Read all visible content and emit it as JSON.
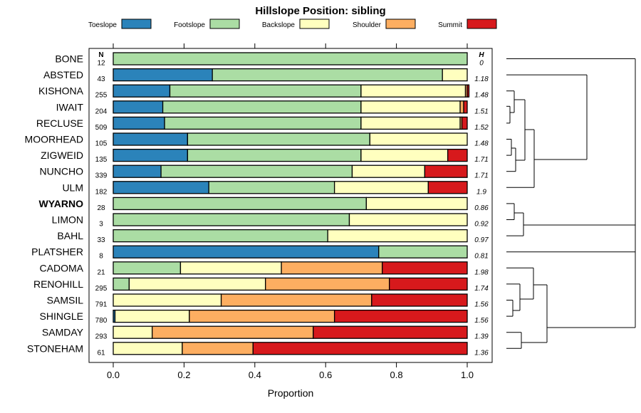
{
  "chart_data": {
    "type": "stacked-bar-horizontal",
    "title": "Hillslope Position: sibling",
    "xlabel": "Proportion",
    "ylabel": "",
    "xlim": [
      0,
      1
    ],
    "xticks": [
      "0.0",
      "0.2",
      "0.4",
      "0.6",
      "0.8",
      "1.0"
    ],
    "n_header": "N",
    "h_header": "H",
    "legend": [
      {
        "name": "Toeslope",
        "color": "#2b83ba"
      },
      {
        "name": "Footslope",
        "color": "#abdda4"
      },
      {
        "name": "Backslope",
        "color": "#ffffbf"
      },
      {
        "name": "Shoulder",
        "color": "#fdae61"
      },
      {
        "name": "Summit",
        "color": "#d7191c"
      }
    ],
    "rows": [
      {
        "name": "BONE",
        "n": "12",
        "h": "0",
        "bold": false,
        "values": [
          0,
          1.0,
          0,
          0,
          0
        ]
      },
      {
        "name": "ABSTED",
        "n": "43",
        "h": "1.18",
        "bold": false,
        "values": [
          0.28,
          0.65,
          0.07,
          0,
          0
        ]
      },
      {
        "name": "KISHONA",
        "n": "255",
        "h": "1.48",
        "bold": false,
        "values": [
          0.16,
          0.54,
          0.295,
          0.005,
          0.005
        ]
      },
      {
        "name": "IWAIT",
        "n": "204",
        "h": "1.51",
        "bold": false,
        "values": [
          0.14,
          0.56,
          0.28,
          0.01,
          0.01
        ]
      },
      {
        "name": "RECLUSE",
        "n": "509",
        "h": "1.52",
        "bold": false,
        "values": [
          0.145,
          0.555,
          0.28,
          0.005,
          0.015
        ]
      },
      {
        "name": "MOORHEAD",
        "n": "105",
        "h": "1.48",
        "bold": false,
        "values": [
          0.21,
          0.515,
          0.275,
          0,
          0
        ]
      },
      {
        "name": "ZIGWEID",
        "n": "135",
        "h": "1.71",
        "bold": false,
        "values": [
          0.21,
          0.49,
          0.245,
          0,
          0.055
        ]
      },
      {
        "name": "NUNCHO",
        "n": "339",
        "h": "1.71",
        "bold": false,
        "values": [
          0.135,
          0.54,
          0.205,
          0,
          0.12
        ]
      },
      {
        "name": "ULM",
        "n": "182",
        "h": "1.9",
        "bold": false,
        "values": [
          0.27,
          0.355,
          0.265,
          0,
          0.11
        ]
      },
      {
        "name": "WYARNO",
        "n": "28",
        "h": "0.86",
        "bold": true,
        "values": [
          0,
          0.715,
          0.285,
          0,
          0
        ]
      },
      {
        "name": "LIMON",
        "n": "3",
        "h": "0.92",
        "bold": false,
        "values": [
          0,
          0.667,
          0.333,
          0,
          0
        ]
      },
      {
        "name": "BAHL",
        "n": "33",
        "h": "0.97",
        "bold": false,
        "values": [
          0,
          0.606,
          0.394,
          0,
          0
        ]
      },
      {
        "name": "PLATSHER",
        "n": "8",
        "h": "0.81",
        "bold": false,
        "values": [
          0.75,
          0.25,
          0,
          0,
          0
        ]
      },
      {
        "name": "CADOMA",
        "n": "21",
        "h": "1.98",
        "bold": false,
        "values": [
          0,
          0.19,
          0.285,
          0.285,
          0.24
        ]
      },
      {
        "name": "RENOHILL",
        "n": "295",
        "h": "1.74",
        "bold": false,
        "values": [
          0,
          0.045,
          0.385,
          0.35,
          0.22
        ]
      },
      {
        "name": "SAMSIL",
        "n": "791",
        "h": "1.56",
        "bold": false,
        "values": [
          0,
          0,
          0.305,
          0.425,
          0.27
        ]
      },
      {
        "name": "SHINGLE",
        "n": "780",
        "h": "1.56",
        "bold": false,
        "values": [
          0.005,
          0,
          0.21,
          0.41,
          0.375
        ]
      },
      {
        "name": "SAMDAY",
        "n": "293",
        "h": "1.39",
        "bold": false,
        "values": [
          0,
          0,
          0.11,
          0.455,
          0.435
        ]
      },
      {
        "name": "STONEHAM",
        "n": "61",
        "h": "1.36",
        "bold": false,
        "values": [
          0,
          0,
          0.195,
          0.2,
          0.605
        ]
      }
    ]
  }
}
